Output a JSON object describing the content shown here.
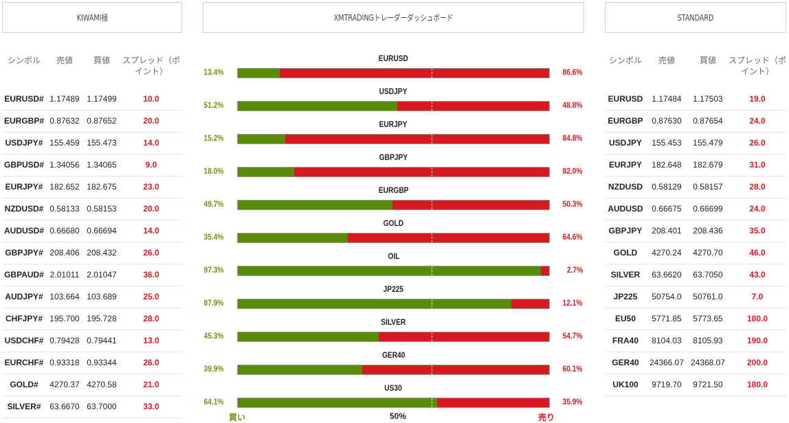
{
  "headers": {
    "left": "KIWAMI極",
    "center": "XMTRADINGトレーダーダッシュボード",
    "right": "STANDARD"
  },
  "kiwami": {
    "columns": [
      "シンボル",
      "売値",
      "買値",
      "スプレッド（ポイント）"
    ],
    "rows": [
      [
        "EURUSD#",
        "1.17489",
        "1.17499",
        "10.0"
      ],
      [
        "EURGBP#",
        "0.87632",
        "0.87652",
        "20.0"
      ],
      [
        "USDJPY#",
        "155.459",
        "155.473",
        "14.0"
      ],
      [
        "GBPUSD#",
        "1.34056",
        "1.34065",
        "9.0"
      ],
      [
        "EURJPY#",
        "182.652",
        "182.675",
        "23.0"
      ],
      [
        "NZDUSD#",
        "0.58133",
        "0.58153",
        "20.0"
      ],
      [
        "AUDUSD#",
        "0.66680",
        "0.66694",
        "14.0"
      ],
      [
        "GBPJPY#",
        "208.406",
        "208.432",
        "26.0"
      ],
      [
        "GBPAUD#",
        "2.01011",
        "2.01047",
        "36.0"
      ],
      [
        "AUDJPY#",
        "103.664",
        "103.689",
        "25.0"
      ],
      [
        "CHFJPY#",
        "195.700",
        "195.728",
        "28.0"
      ],
      [
        "USDCHF#",
        "0.79428",
        "0.79441",
        "13.0"
      ],
      [
        "EURCHF#",
        "0.93318",
        "0.93344",
        "26.0"
      ],
      [
        "GOLD#",
        "4270.37",
        "4270.58",
        "21.0"
      ],
      [
        "SILVER#",
        "63.6670",
        "63.7000",
        "33.0"
      ]
    ]
  },
  "standard": {
    "columns": [
      "シンボル",
      "売値",
      "買値",
      "スプレッド（ポイント）"
    ],
    "rows": [
      [
        "EURUSD",
        "1.17484",
        "1.17503",
        "19.0"
      ],
      [
        "EURGBP",
        "0.87630",
        "0.87654",
        "24.0"
      ],
      [
        "USDJPY",
        "155.453",
        "155.479",
        "26.0"
      ],
      [
        "EURJPY",
        "182.648",
        "182.679",
        "31.0"
      ],
      [
        "NZDUSD",
        "0.58129",
        "0.58157",
        "28.0"
      ],
      [
        "AUDUSD",
        "0.66675",
        "0.66699",
        "24.0"
      ],
      [
        "GBPJPY",
        "208.401",
        "208.436",
        "35.0"
      ],
      [
        "GOLD",
        "4270.24",
        "4270.70",
        "46.0"
      ],
      [
        "SILVER",
        "63.6620",
        "63.7050",
        "43.0"
      ],
      [
        "JP225",
        "50754.0",
        "50761.0",
        "7.0"
      ],
      [
        "EU50",
        "5771.85",
        "5773.65",
        "180.0"
      ],
      [
        "FRA40",
        "8104.03",
        "8105.93",
        "190.0"
      ],
      [
        "GER40",
        "24366.07",
        "24368.07",
        "200.0"
      ],
      [
        "UK100",
        "9719.70",
        "9721.50",
        "180.0"
      ]
    ]
  },
  "dashboard": {
    "buy_label": "買い",
    "mid_label": "50%",
    "sell_label": "売り",
    "pairs": [
      {
        "name": "EURUSD",
        "buy": 13.4,
        "sell": 86.6,
        "buy_text": "13.4%",
        "sell_text": "86.6%"
      },
      {
        "name": "USDJPY",
        "buy": 51.2,
        "sell": 48.8,
        "buy_text": "51.2%",
        "sell_text": "48.8%"
      },
      {
        "name": "EURJPY",
        "buy": 15.2,
        "sell": 84.8,
        "buy_text": "15.2%",
        "sell_text": "84.8%"
      },
      {
        "name": "GBPJPY",
        "buy": 18.0,
        "sell": 82.0,
        "buy_text": "18.0%",
        "sell_text": "82.0%"
      },
      {
        "name": "EURGBP",
        "buy": 49.7,
        "sell": 50.3,
        "buy_text": "49.7%",
        "sell_text": "50.3%"
      },
      {
        "name": "GOLD",
        "buy": 35.4,
        "sell": 64.6,
        "buy_text": "35.4%",
        "sell_text": "64.6%"
      },
      {
        "name": "OIL",
        "buy": 97.3,
        "sell": 2.7,
        "buy_text": "97.3%",
        "sell_text": "2.7%"
      },
      {
        "name": "JP225",
        "buy": 87.9,
        "sell": 12.1,
        "buy_text": "87.9%",
        "sell_text": "12.1%"
      },
      {
        "name": "SILVER",
        "buy": 45.3,
        "sell": 54.7,
        "buy_text": "45.3%",
        "sell_text": "54.7%"
      },
      {
        "name": "GER40",
        "buy": 39.9,
        "sell": 60.1,
        "buy_text": "39.9%",
        "sell_text": "60.1%"
      },
      {
        "name": "US30",
        "buy": 64.1,
        "sell": 35.9,
        "buy_text": "64.1%",
        "sell_text": "35.9%"
      }
    ]
  },
  "colors": {
    "buy": "#5a8c0a",
    "sell": "#d71a21",
    "buy_text": "#6e9612"
  }
}
